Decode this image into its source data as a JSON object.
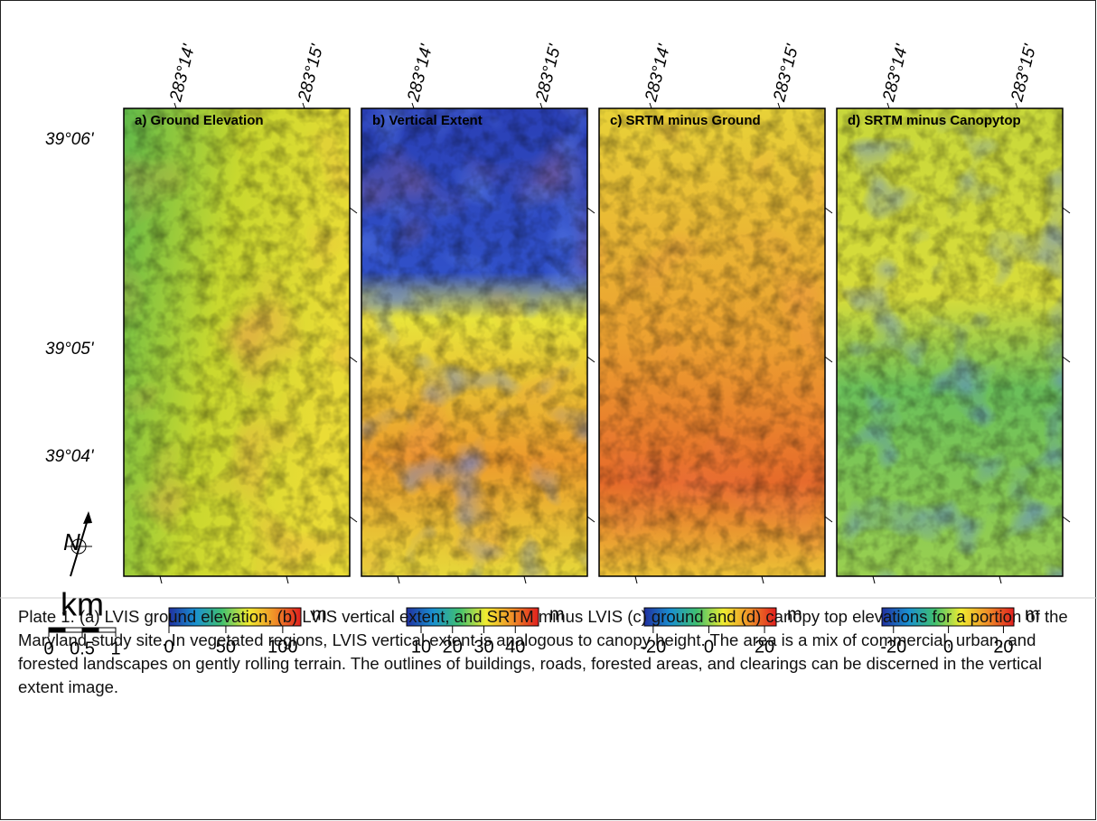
{
  "lon_labels": [
    "283°14'",
    "283°15'"
  ],
  "lat_labels": [
    "39°06'",
    "39°05'",
    "39°04'"
  ],
  "north": "N",
  "panels": [
    {
      "title": "a) Ground Elevation",
      "colorbar": {
        "unit": "m",
        "lim": [
          0,
          116
        ],
        "ticks": [
          0,
          50,
          100
        ]
      }
    },
    {
      "title": "b) Vertical Extent",
      "colorbar": {
        "unit": "m",
        "lim": [
          5.4,
          47.4
        ],
        "ticks": [
          10,
          20,
          30,
          40
        ]
      }
    },
    {
      "title": "c) SRTM minus Ground",
      "colorbar": {
        "unit": "m",
        "lim": [
          -23.2,
          24.2
        ],
        "ticks": [
          -20,
          0,
          20
        ]
      }
    },
    {
      "title": "d) SRTM minus Canopytop",
      "colorbar": {
        "unit": "m",
        "lim": [
          -24.2,
          23.8
        ],
        "ticks": [
          -20,
          0,
          20
        ]
      }
    }
  ],
  "scale": {
    "unit": "km",
    "lim": [
      0,
      1
    ],
    "ticks": [
      0,
      0.5,
      1
    ]
  },
  "caption": "Plate 1. (a) LVIS ground elevation, (b) LVIS vertical extent, and SRTM minus LVIS (c) ground and (d) canopy top elevations for a portion of the Maryland study site. In vegetated regions, LVIS vertical extent is analogous to canopy height. The area is a mix of commercial, urban, and forested landscapes on gently rolling terrain. The outlines of buildings, roads, forested areas, and clearings can be discerned in the vertical extent image."
}
